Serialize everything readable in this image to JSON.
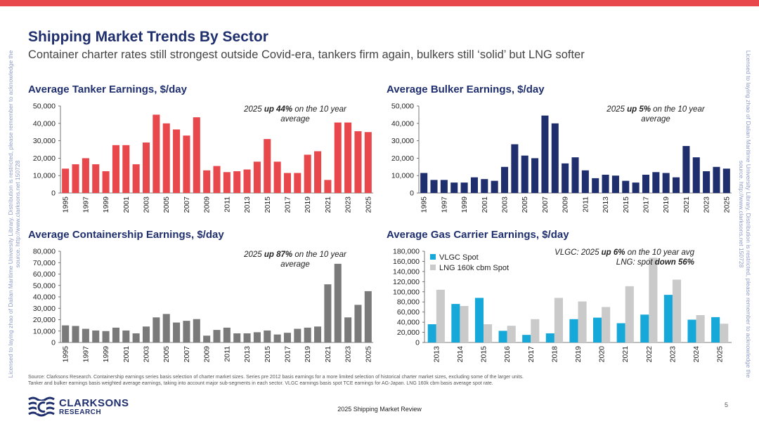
{
  "header": {
    "title": "Shipping Market Trends By Sector",
    "subtitle": "Container charter rates still strongest outside Covid-era, tankers firm again, bulkers still ‘solid’ but LNG softer"
  },
  "watermark": {
    "left": "Licensed to laying zhao of Dalian Maritime University Library. Distribution is restricted, please remember to acknowledge the source. http://www.clarksons.net 150728",
    "right": "Licensed to laying zhao of Dalian Maritime University Library. Distribution is restricted, please remember to acknowledge the source. http://www.clarksons.net 150728"
  },
  "colors": {
    "tanker": "#e8474c",
    "bulker": "#1f2f6e",
    "container": "#7a7a7a",
    "vlgc": "#16a8d9",
    "lng": "#cacaca",
    "accent_bar": "#e8474c",
    "title": "#1f2f6e"
  },
  "notes": {
    "tanker": [
      "2025 ",
      "up 44%",
      " on the 10 year average"
    ],
    "bulker": [
      "2025 ",
      "up 5%",
      " on the 10 year average"
    ],
    "container": [
      "2025 ",
      "up 87%",
      " on the 10 year average"
    ],
    "gas_line1": [
      "VLGC: 2025 ",
      "up 6%",
      " on the 10 year avg"
    ],
    "gas_line2": [
      "LNG: spot ",
      "down 56%",
      ""
    ]
  },
  "source": {
    "line1": "Source: Clarksons Research. Containership earnings series basis selection of charter market sizes. Series pre 2012 basis earnings for a more limited selection of historical charter market sizes, excluding some of the larger units.",
    "line2": "Tanker and bulker earnings basis weighted average earnings, taking into account major sub-segments in each sector. VLGC earnings basis spot TCE earnings for AG-Japan. LNG 160k cbm basis average spot rate."
  },
  "footer": {
    "logo_word1": "CLARKSONS",
    "logo_word2": "RESEARCH",
    "center": "2025 Shipping Market Review",
    "page": "5"
  },
  "chart_data": [
    {
      "id": "tanker",
      "type": "bar",
      "title": "Average Tanker Earnings, $/day",
      "categories": [
        "1995",
        "1996",
        "1997",
        "1998",
        "1999",
        "2000",
        "2001",
        "2002",
        "2003",
        "2004",
        "2005",
        "2006",
        "2007",
        "2008",
        "2009",
        "2010",
        "2011",
        "2012",
        "2013",
        "2014",
        "2015",
        "2016",
        "2017",
        "2018",
        "2019",
        "2020",
        "2021",
        "2022",
        "2023",
        "2024",
        "2025"
      ],
      "series": [
        {
          "values": [
            14000,
            16500,
            20000,
            16500,
            12500,
            27500,
            27500,
            16500,
            29000,
            45000,
            40000,
            36500,
            33000,
            43500,
            13000,
            15500,
            12000,
            12500,
            13500,
            18000,
            31000,
            18000,
            11500,
            11500,
            22000,
            24000,
            7500,
            40500,
            40500,
            35500,
            35000
          ]
        }
      ],
      "ylim": [
        0,
        50000
      ],
      "yticks": [
        "0",
        "10,000",
        "20,000",
        "30,000",
        "40,000",
        "50,000"
      ],
      "xtick_labels": [
        "1995",
        "1997",
        "1999",
        "2001",
        "2003",
        "2005",
        "2007",
        "2009",
        "2011",
        "2013",
        "2015",
        "2017",
        "2019",
        "2021",
        "2023",
        "2025"
      ]
    },
    {
      "id": "bulker",
      "type": "bar",
      "title": "Average Bulker Earnings, $/day",
      "categories": [
        "1995",
        "1996",
        "1997",
        "1998",
        "1999",
        "2000",
        "2001",
        "2002",
        "2003",
        "2004",
        "2005",
        "2006",
        "2007",
        "2008",
        "2009",
        "2010",
        "2011",
        "2012",
        "2013",
        "2014",
        "2015",
        "2016",
        "2017",
        "2018",
        "2019",
        "2020",
        "2021",
        "2022",
        "2023",
        "2024",
        "2025"
      ],
      "series": [
        {
          "values": [
            11500,
            7500,
            7500,
            6000,
            6000,
            9000,
            8000,
            7000,
            15000,
            28000,
            21500,
            20000,
            44500,
            40000,
            17000,
            20500,
            13000,
            8500,
            10500,
            10000,
            7000,
            6000,
            10500,
            12000,
            11500,
            9000,
            27000,
            20500,
            12500,
            15000,
            14000
          ]
        }
      ],
      "ylim": [
        0,
        50000
      ],
      "yticks": [
        "0",
        "10,000",
        "20,000",
        "30,000",
        "40,000",
        "50,000"
      ],
      "xtick_labels": [
        "1995",
        "1997",
        "1999",
        "2001",
        "2003",
        "2005",
        "2007",
        "2009",
        "2011",
        "2013",
        "2015",
        "2017",
        "2019",
        "2021",
        "2023",
        "2025"
      ]
    },
    {
      "id": "container",
      "type": "bar",
      "title": "Average Containership Earnings, $/day",
      "categories": [
        "1995",
        "1996",
        "1997",
        "1998",
        "1999",
        "2000",
        "2001",
        "2002",
        "2003",
        "2004",
        "2005",
        "2006",
        "2007",
        "2008",
        "2009",
        "2010",
        "2011",
        "2012",
        "2013",
        "2014",
        "2015",
        "2016",
        "2017",
        "2018",
        "2019",
        "2020",
        "2021",
        "2022",
        "2023",
        "2024",
        "2025"
      ],
      "series": [
        {
          "values": [
            15000,
            14500,
            12000,
            10500,
            10000,
            13000,
            10500,
            8000,
            14000,
            22000,
            25000,
            17500,
            19000,
            20500,
            6000,
            11000,
            13000,
            8000,
            8000,
            9000,
            10500,
            7000,
            8500,
            12000,
            13000,
            14000,
            51000,
            69000,
            22000,
            33000,
            45000
          ]
        }
      ],
      "ylim": [
        0,
        80000
      ],
      "yticks": [
        "0",
        "10,000",
        "20,000",
        "30,000",
        "40,000",
        "50,000",
        "60,000",
        "70,000",
        "80,000"
      ],
      "xtick_labels": [
        "1995",
        "1997",
        "1999",
        "2001",
        "2003",
        "2005",
        "2007",
        "2009",
        "2011",
        "2013",
        "2015",
        "2017",
        "2019",
        "2021",
        "2023",
        "2025"
      ]
    },
    {
      "id": "gas",
      "type": "bar",
      "title": "Average Gas Carrier Earnings, $/day",
      "categories": [
        "2013",
        "2014",
        "2015",
        "2016",
        "2017",
        "2018",
        "2019",
        "2020",
        "2021",
        "2022",
        "2023",
        "2024",
        "2025"
      ],
      "series": [
        {
          "name": "VLGC Spot",
          "values": [
            36000,
            76000,
            88000,
            23000,
            15000,
            18000,
            46000,
            49000,
            38000,
            55000,
            94000,
            45000,
            50000
          ]
        },
        {
          "name": "LNG 160k cbm Spot",
          "values": [
            104000,
            72000,
            36000,
            33000,
            46000,
            88000,
            81000,
            70000,
            111000,
            167000,
            124000,
            54000,
            37000
          ]
        }
      ],
      "ylim": [
        0,
        180000
      ],
      "yticks": [
        "0",
        "20,000",
        "40,000",
        "60,000",
        "80,000",
        "100,000",
        "120,000",
        "140,000",
        "160,000",
        "180,000"
      ],
      "xtick_labels": [
        "2013",
        "2014",
        "2015",
        "2016",
        "2017",
        "2018",
        "2019",
        "2020",
        "2021",
        "2022",
        "2023",
        "2024",
        "2025"
      ],
      "legend": "top-left"
    }
  ]
}
